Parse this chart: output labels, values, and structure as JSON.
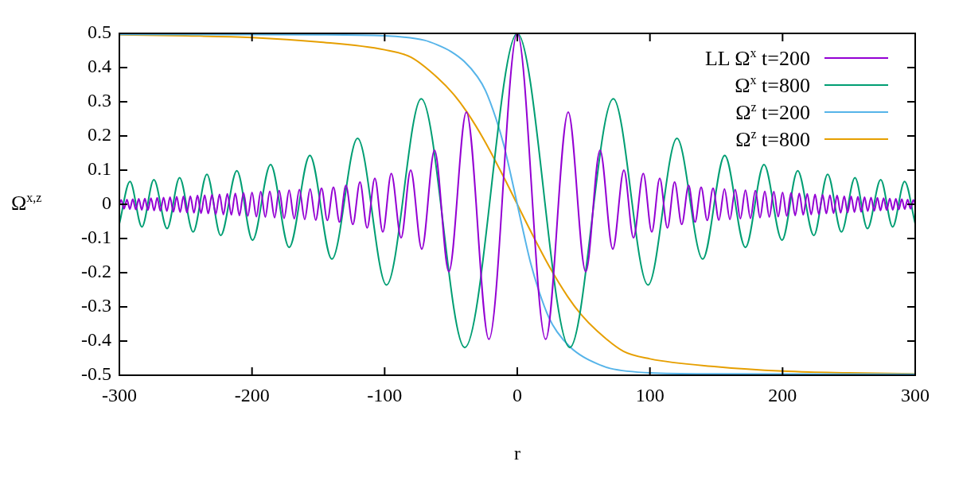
{
  "chart_data": {
    "type": "line",
    "xlabel": "r",
    "ylabel": "Ω$^{x,z}$",
    "xlim": [
      -300,
      300
    ],
    "xticks": [
      -300,
      -200,
      -100,
      0,
      100,
      200,
      300
    ],
    "ylim": [
      -0.5,
      0.5
    ],
    "yticks": [
      -0.5,
      -0.4,
      -0.3,
      -0.2,
      -0.1,
      0,
      0.1,
      0.2,
      0.3,
      0.4,
      0.5
    ],
    "grid": false,
    "legend": "top right",
    "series": [
      {
        "name": "LL Ω$^{x}$ t=200",
        "color": "#9400d3",
        "x": [
          -300,
          -298.6,
          -296.5,
          -294.3,
          -292.1,
          -289.9,
          -287.6,
          -285.4,
          -283.1,
          -280.8,
          -278.5,
          -276.2,
          -273.8,
          -271.5,
          -269.1,
          -266.7,
          -264.2,
          -261.8,
          -259.3,
          -256.8,
          -254.2,
          -251.7,
          -249.1,
          -246.5,
          -243.8,
          -241.1,
          -238.4,
          -235.7,
          -233,
          -230.2,
          -227.3,
          -224.5,
          -221.6,
          -218.6,
          -215.6,
          -212.6,
          -209.5,
          -206.4,
          -203.2,
          -200,
          -196.7,
          -193.4,
          -190,
          -186.6,
          -183,
          -179.5,
          -175.8,
          -172,
          -168.2,
          -164.3,
          -160.3,
          -156.2,
          -152,
          -147.6,
          -143.2,
          -138.6,
          -134,
          -129.2,
          -124,
          -118.6,
          -113.2,
          -107.4,
          -101.4,
          -95,
          -87.6,
          -80.4,
          -72,
          -62.4,
          -51.6,
          -38.4,
          -21.4,
          0,
          21.4,
          38.4,
          51.6,
          62.4,
          72,
          80.4,
          87.6,
          95,
          101.4,
          107.4,
          113.2,
          118.6,
          124,
          129.2,
          134,
          138.6,
          143.2,
          147.6,
          152,
          156.2,
          160.3,
          164.3,
          168.2,
          172,
          175.8,
          179.5,
          183,
          186.6,
          190,
          193.4,
          196.7,
          200,
          203.2,
          206.4,
          209.5,
          212.6,
          215.6,
          218.6,
          221.6,
          224.5,
          227.3,
          230.2,
          233,
          235.7,
          238.4,
          241.1,
          243.8,
          246.5,
          249.1,
          251.7,
          254.2,
          256.8,
          259.3,
          261.8,
          264.2,
          266.7,
          269.1,
          271.5,
          273.8,
          276.2,
          278.5,
          280.8,
          283.1,
          285.4,
          287.6,
          289.9,
          292.1,
          294.3,
          296.5,
          298.6,
          300
        ],
        "values": [
          0,
          0.013,
          -0.013,
          0.014,
          -0.014,
          0.015,
          -0.015,
          0.016,
          -0.016,
          0.017,
          -0.017,
          0.018,
          -0.018,
          0.019,
          -0.019,
          0.02,
          -0.02,
          0.021,
          -0.022,
          0.022,
          -0.023,
          0.023,
          -0.024,
          0.024,
          -0.025,
          0.026,
          -0.026,
          0.027,
          -0.027,
          0.028,
          -0.029,
          0.029,
          -0.03,
          0.031,
          -0.031,
          0.032,
          -0.033,
          0.034,
          -0.034,
          0.035,
          -0.036,
          0.037,
          -0.037,
          0.038,
          -0.039,
          0.04,
          -0.041,
          0.041,
          -0.042,
          0.043,
          -0.044,
          0.045,
          -0.046,
          0.047,
          -0.047,
          0.05,
          -0.052,
          0.055,
          -0.059,
          0.065,
          -0.069,
          0.076,
          -0.081,
          0.09,
          -0.098,
          0.1,
          -0.131,
          0.158,
          -0.197,
          0.27,
          -0.395,
          0.5,
          -0.395,
          0.27,
          -0.197,
          0.158,
          -0.131,
          0.1,
          -0.098,
          0.09,
          -0.081,
          0.076,
          -0.069,
          0.065,
          -0.059,
          0.055,
          -0.052,
          0.05,
          -0.047,
          0.047,
          -0.046,
          0.045,
          -0.044,
          0.043,
          -0.042,
          0.041,
          -0.041,
          0.04,
          -0.039,
          0.038,
          -0.037,
          0.037,
          -0.036,
          0.035,
          -0.034,
          0.034,
          -0.033,
          0.032,
          -0.031,
          0.031,
          -0.03,
          0.029,
          -0.029,
          0.028,
          -0.027,
          0.027,
          -0.026,
          0.026,
          -0.025,
          0.024,
          -0.024,
          0.023,
          -0.023,
          0.022,
          -0.022,
          0.021,
          -0.02,
          0.02,
          -0.019,
          0.019,
          -0.018,
          0.018,
          -0.017,
          0.017,
          -0.016,
          0.016,
          -0.015,
          0.015,
          -0.014,
          0.014,
          -0.013,
          0.013,
          0
        ]
      },
      {
        "name": "Ω$^{x}$ t=800",
        "color": "#009e73",
        "x": [
          -300,
          -292,
          -283,
          -274,
          -264,
          -254.6,
          -244.4,
          -234,
          -223.6,
          -211.4,
          -199.6,
          -186,
          -172,
          -156.4,
          -139.8,
          -120.4,
          -98.6,
          -72.4,
          -39.6,
          0,
          39.6,
          72.4,
          98.6,
          120.4,
          139.8,
          156.4,
          172,
          186,
          199.6,
          211.4,
          223.6,
          234,
          244.4,
          254.6,
          264,
          274,
          283,
          292,
          300
        ],
        "values": [
          -0.057,
          0.067,
          -0.066,
          0.072,
          -0.071,
          0.078,
          -0.081,
          0.088,
          -0.091,
          0.098,
          -0.105,
          0.116,
          -0.126,
          0.143,
          -0.16,
          0.193,
          -0.236,
          0.309,
          -0.419,
          0.5,
          -0.419,
          0.309,
          -0.236,
          0.193,
          -0.16,
          0.143,
          -0.126,
          0.116,
          -0.105,
          0.098,
          -0.091,
          0.088,
          -0.081,
          0.078,
          -0.071,
          0.072,
          -0.066,
          0.067,
          -0.057
        ]
      },
      {
        "name": "Ω$^{z}$ t=200",
        "color": "#56b4e9",
        "x": [
          -300,
          -150,
          -100,
          -70,
          -60,
          -50,
          -40,
          -30,
          -24,
          -16,
          -10,
          -5,
          0,
          5,
          10,
          16,
          24,
          30,
          40,
          50,
          60,
          70,
          100,
          150,
          300
        ],
        "values": [
          0.497,
          0.496,
          0.493,
          0.48,
          0.466,
          0.447,
          0.418,
          0.373,
          0.333,
          0.25,
          0.171,
          0.088,
          0,
          -0.088,
          -0.171,
          -0.25,
          -0.333,
          -0.373,
          -0.418,
          -0.447,
          -0.466,
          -0.48,
          -0.493,
          -0.496,
          -0.497
        ]
      },
      {
        "name": "Ω$^{z}$ t=800",
        "color": "#e69f00",
        "x": [
          -300,
          -250,
          -200,
          -150,
          -100,
          -80,
          -60,
          -48,
          -38,
          -25,
          -10,
          0,
          10,
          25,
          38,
          48,
          60,
          80,
          100,
          150,
          200,
          250,
          300
        ],
        "values": [
          0.496,
          0.493,
          0.488,
          0.475,
          0.452,
          0.43,
          0.37,
          0.322,
          0.27,
          0.188,
          0.078,
          0,
          -0.078,
          -0.188,
          -0.27,
          -0.322,
          -0.37,
          -0.43,
          -0.452,
          -0.475,
          -0.488,
          -0.493,
          -0.496
        ]
      }
    ]
  }
}
